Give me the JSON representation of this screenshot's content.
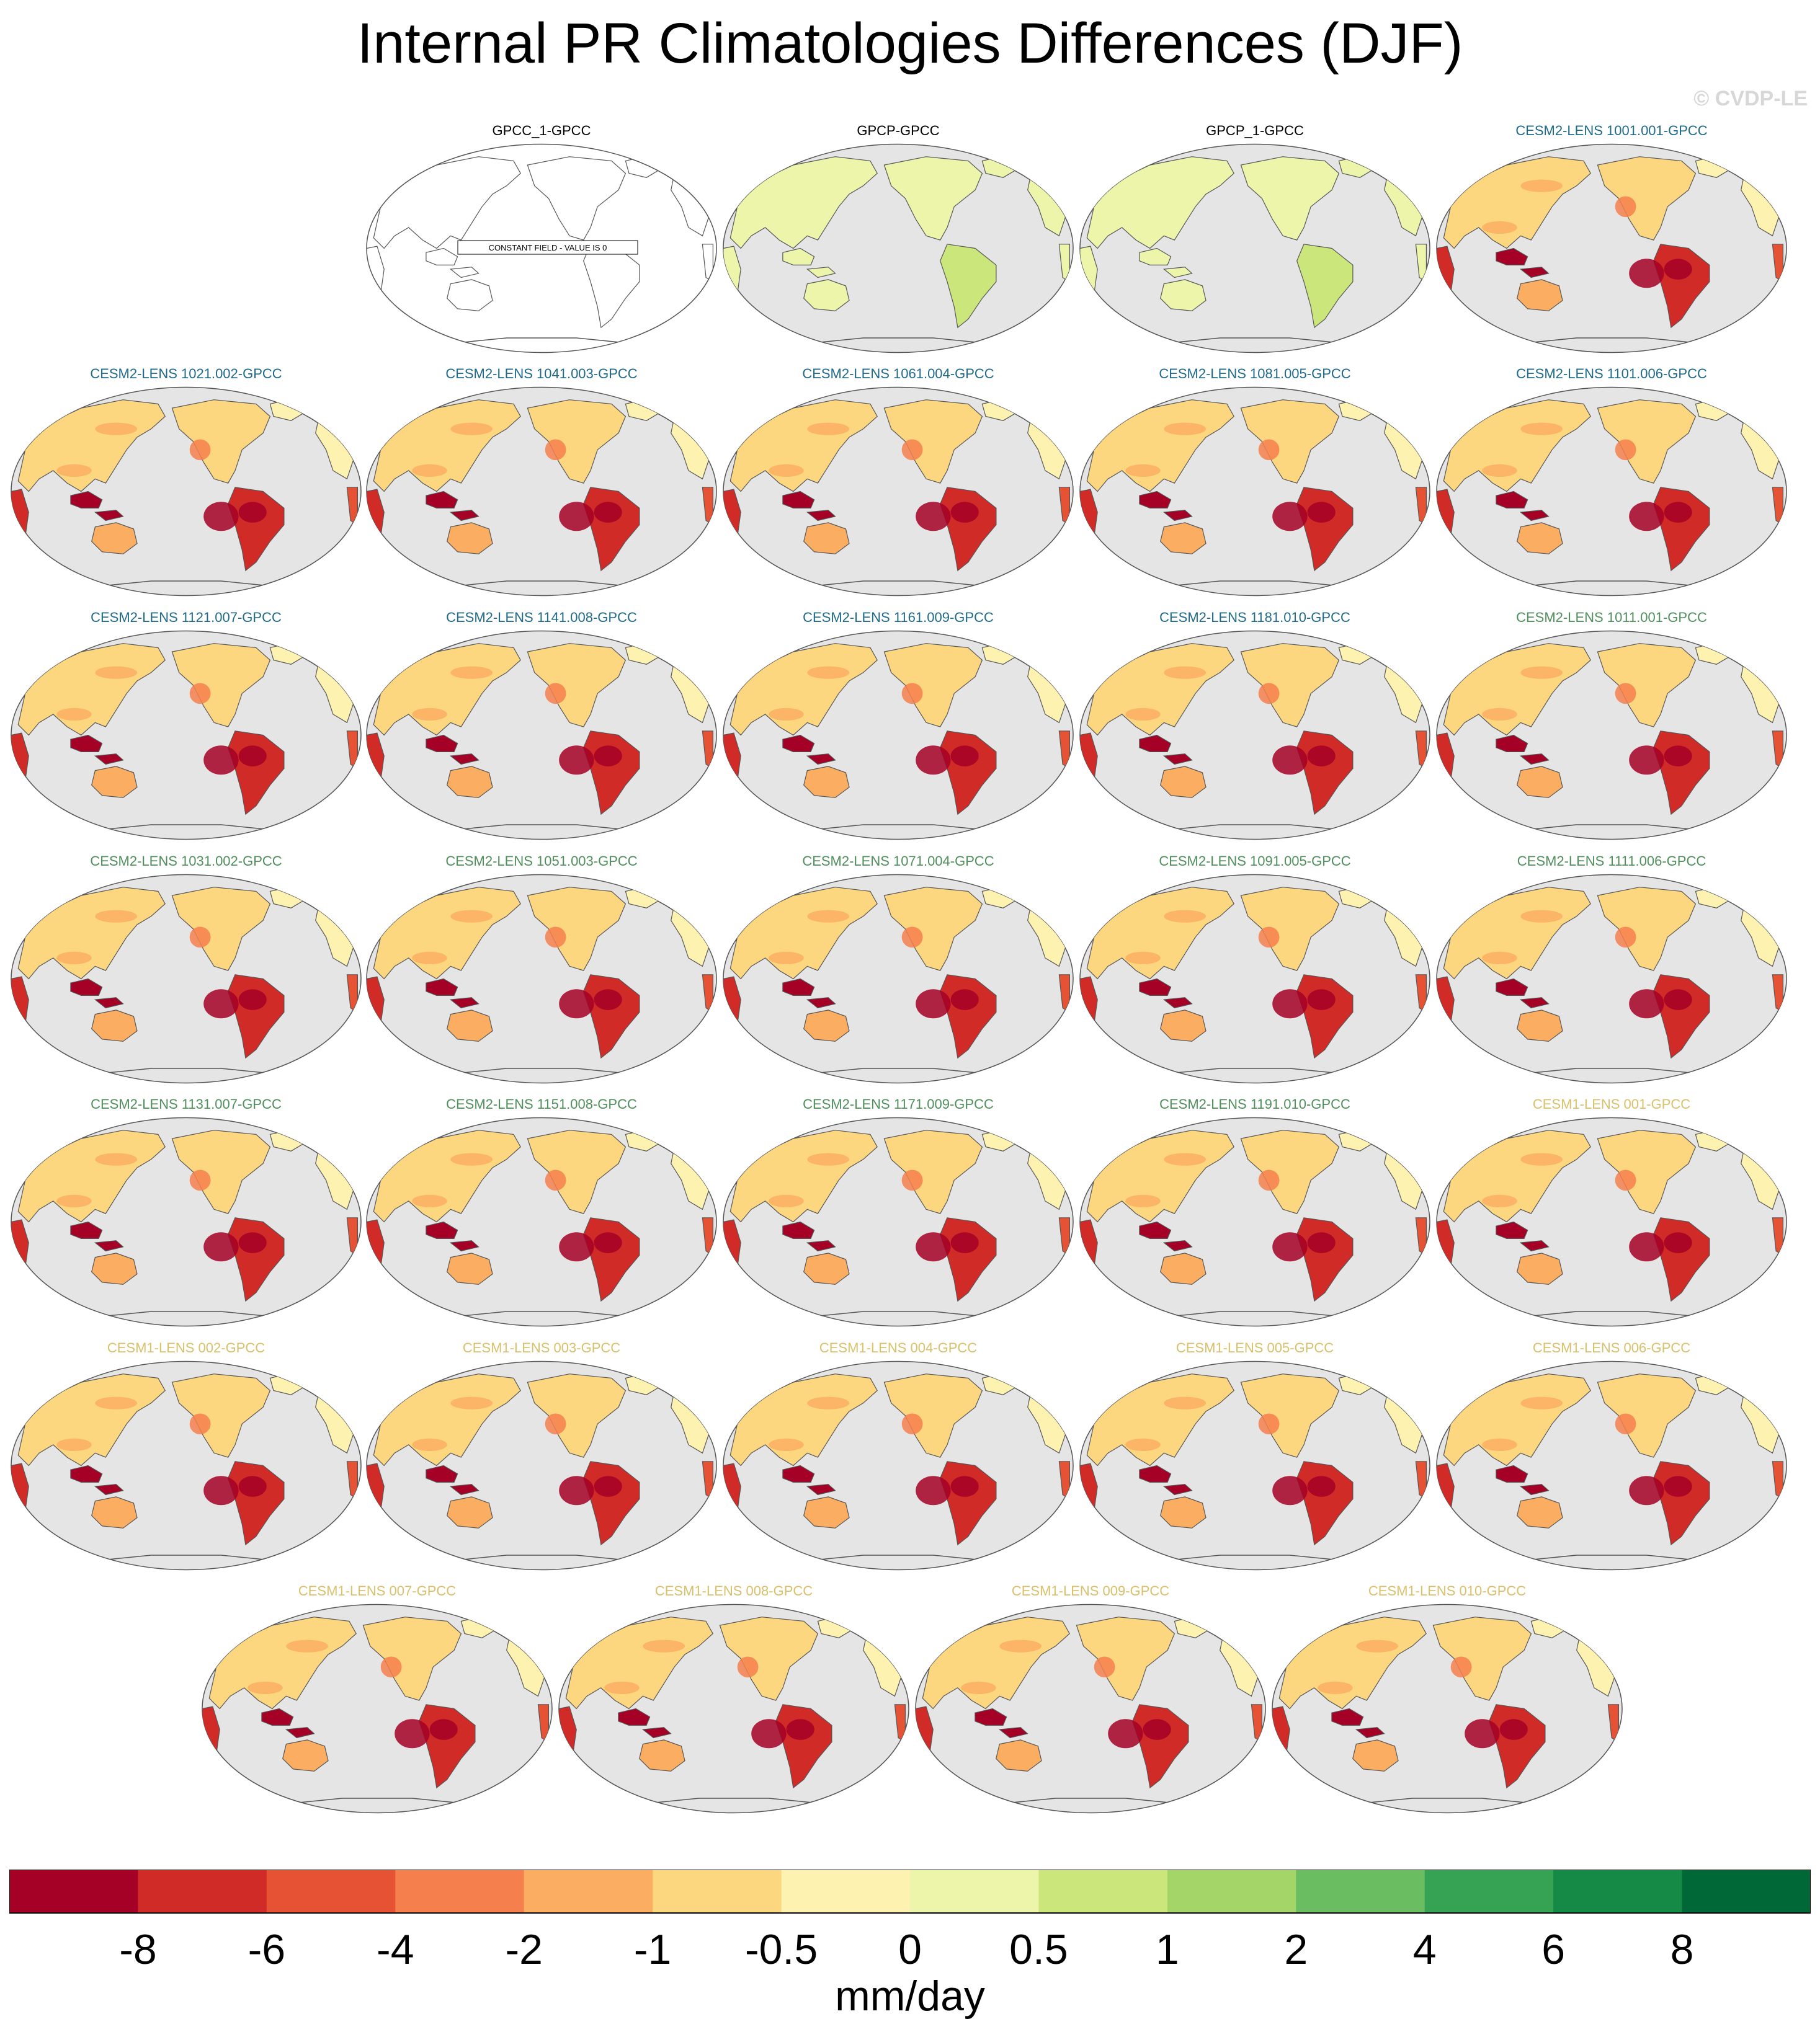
{
  "title": "Internal PR Climatologies Differences (DJF)",
  "watermark": "© CVDP-LE",
  "constant_field_note": "CONSTANT FIELD - VALUE IS 0",
  "colors": {
    "ocean": "#e5e5e5",
    "coast": "#555555",
    "title_obs": "#000000",
    "title_cesm2_a": "#1f6a8a",
    "title_cesm2_b": "#4f8f5b",
    "title_cesm1": "#d9c06a"
  },
  "panels": [
    {
      "title": "GPCC_1-GPCC",
      "style": "empty",
      "group": "obs"
    },
    {
      "title": "GPCP-GPCC",
      "style": "green",
      "group": "obs"
    },
    {
      "title": "GPCP_1-GPCC",
      "style": "green",
      "group": "obs"
    },
    {
      "title": "CESM2-LENS 1001.001-GPCC",
      "style": "model",
      "group": "cesm2_a"
    },
    {
      "title": "CESM2-LENS 1021.002-GPCC",
      "style": "model",
      "group": "cesm2_a"
    },
    {
      "title": "CESM2-LENS 1041.003-GPCC",
      "style": "model",
      "group": "cesm2_a"
    },
    {
      "title": "CESM2-LENS 1061.004-GPCC",
      "style": "model",
      "group": "cesm2_a"
    },
    {
      "title": "CESM2-LENS 1081.005-GPCC",
      "style": "model",
      "group": "cesm2_a"
    },
    {
      "title": "CESM2-LENS 1101.006-GPCC",
      "style": "model",
      "group": "cesm2_a"
    },
    {
      "title": "CESM2-LENS 1121.007-GPCC",
      "style": "model",
      "group": "cesm2_a"
    },
    {
      "title": "CESM2-LENS 1141.008-GPCC",
      "style": "model",
      "group": "cesm2_a"
    },
    {
      "title": "CESM2-LENS 1161.009-GPCC",
      "style": "model",
      "group": "cesm2_a"
    },
    {
      "title": "CESM2-LENS 1181.010-GPCC",
      "style": "model",
      "group": "cesm2_a"
    },
    {
      "title": "CESM2-LENS 1011.001-GPCC",
      "style": "model",
      "group": "cesm2_b"
    },
    {
      "title": "CESM2-LENS 1031.002-GPCC",
      "style": "model",
      "group": "cesm2_b"
    },
    {
      "title": "CESM2-LENS 1051.003-GPCC",
      "style": "model",
      "group": "cesm2_b"
    },
    {
      "title": "CESM2-LENS 1071.004-GPCC",
      "style": "model",
      "group": "cesm2_b"
    },
    {
      "title": "CESM2-LENS 1091.005-GPCC",
      "style": "model",
      "group": "cesm2_b"
    },
    {
      "title": "CESM2-LENS 1111.006-GPCC",
      "style": "model",
      "group": "cesm2_b"
    },
    {
      "title": "CESM2-LENS 1131.007-GPCC",
      "style": "model",
      "group": "cesm2_b"
    },
    {
      "title": "CESM2-LENS 1151.008-GPCC",
      "style": "model",
      "group": "cesm2_b"
    },
    {
      "title": "CESM2-LENS 1171.009-GPCC",
      "style": "model",
      "group": "cesm2_b"
    },
    {
      "title": "CESM2-LENS 1191.010-GPCC",
      "style": "model",
      "group": "cesm2_b"
    },
    {
      "title": "CESM1-LENS 001-GPCC",
      "style": "model",
      "group": "cesm1"
    },
    {
      "title": "CESM1-LENS 002-GPCC",
      "style": "model",
      "group": "cesm1"
    },
    {
      "title": "CESM1-LENS 003-GPCC",
      "style": "model",
      "group": "cesm1"
    },
    {
      "title": "CESM1-LENS 004-GPCC",
      "style": "model",
      "group": "cesm1"
    },
    {
      "title": "CESM1-LENS 005-GPCC",
      "style": "model",
      "group": "cesm1"
    },
    {
      "title": "CESM1-LENS 006-GPCC",
      "style": "model",
      "group": "cesm1"
    },
    {
      "title": "CESM1-LENS 007-GPCC",
      "style": "model",
      "group": "cesm1"
    },
    {
      "title": "CESM1-LENS 008-GPCC",
      "style": "model",
      "group": "cesm1"
    },
    {
      "title": "CESM1-LENS 009-GPCC",
      "style": "model",
      "group": "cesm1"
    },
    {
      "title": "CESM1-LENS 010-GPCC",
      "style": "model",
      "group": "cesm1"
    }
  ],
  "colorbar": {
    "colors": [
      "#a50026",
      "#d12b28",
      "#e65234",
      "#f6804d",
      "#fbae61",
      "#fdd680",
      "#fef2b0",
      "#ecf5aa",
      "#cbe77c",
      "#a3d568",
      "#6bbd62",
      "#35a353",
      "#158a47",
      "#006837"
    ],
    "labels": [
      "-8",
      "-6",
      "-4",
      "-2",
      "-1",
      "-0.5",
      "0",
      "0.5",
      "1",
      "2",
      "4",
      "6",
      "8"
    ],
    "units": "mm/day"
  }
}
